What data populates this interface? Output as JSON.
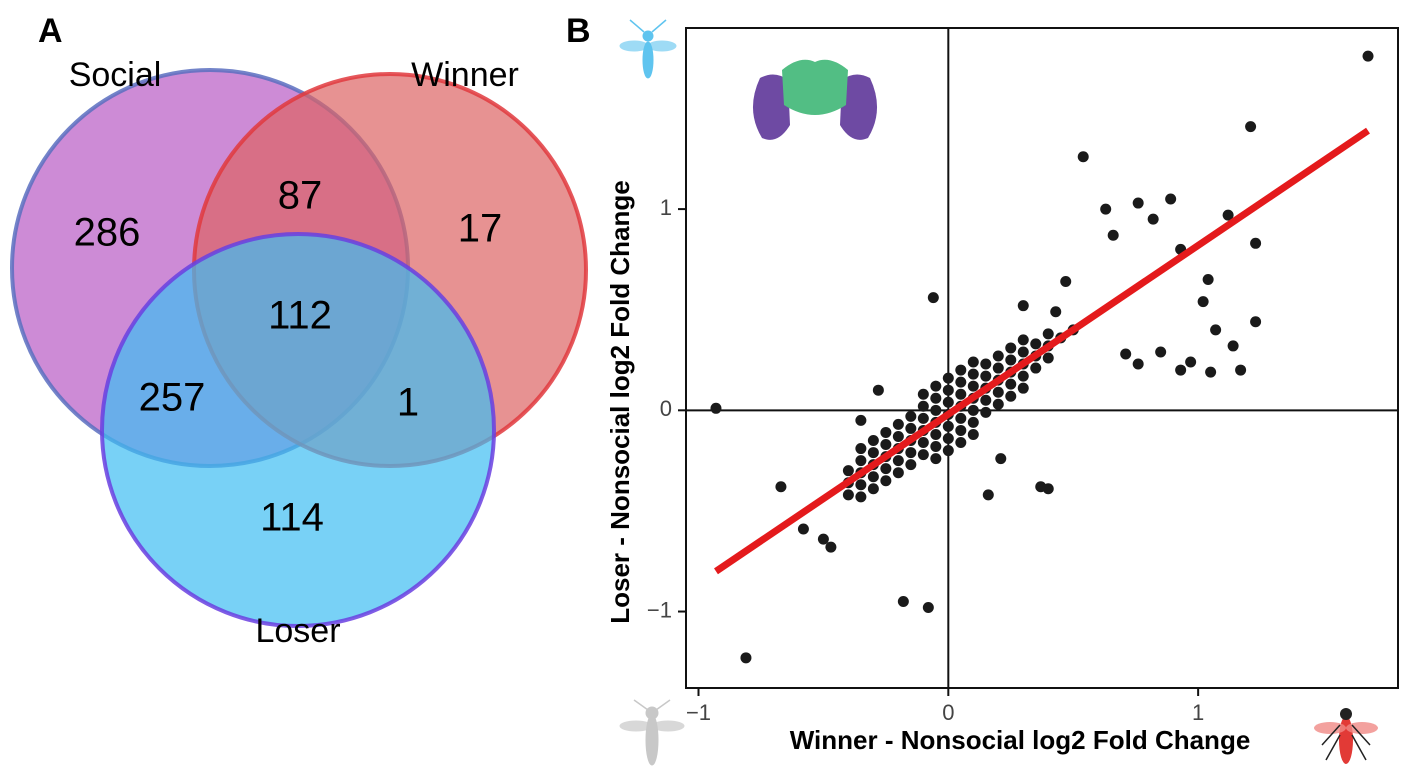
{
  "chart_data": [
    {
      "type": "venn",
      "panel_label": "A",
      "sets": [
        {
          "name": "Social",
          "color": "#b85ac4",
          "stroke": "#5a6fc0"
        },
        {
          "name": "Winner",
          "color": "#dd6464",
          "stroke": "#e0393e"
        },
        {
          "name": "Loser",
          "color": "#3fbef2",
          "stroke": "#6a3fe0"
        }
      ],
      "counts": [
        286,
        87,
        17,
        257,
        112,
        1,
        114
      ]
    },
    {
      "type": "scatter",
      "panel_label": "B",
      "xlabel": "Winner - Nonsocial log2 Fold Change",
      "ylabel": "Loser - Nonsocial log2 Fold Change",
      "xlim": [
        -1.05,
        1.8
      ],
      "ylim": [
        -1.38,
        1.9
      ],
      "xticks": [
        {
          "value": -1,
          "label": "−1"
        },
        0,
        1
      ],
      "yticks": [
        {
          "value": -1,
          "label": "−1"
        },
        0,
        1
      ],
      "vline": 0,
      "hline": 0,
      "color": "#1a1a1a",
      "fit_line": {
        "color": "#e41a1c",
        "x": [
          -0.93,
          1.68
        ],
        "y": [
          -0.8,
          1.39
        ]
      },
      "x": [
        1.68,
        1.21,
        0.54,
        1.12,
        1.23,
        0.63,
        0.76,
        0.89,
        0.82,
        0.66,
        0.93,
        1.04,
        1.02,
        1.23,
        1.14,
        1.07,
        1.17,
        1.05,
        0.97,
        0.85,
        0.93,
        0.76,
        0.71,
        0.37,
        0.4,
        -0.93,
        -0.81,
        -0.18,
        -0.08,
        -0.06,
        -0.67,
        -0.58,
        -0.47,
        -0.5,
        -0.35,
        -0.28,
        0.43,
        0.3,
        0.47,
        0.21,
        0.16,
        -0.4,
        -0.4,
        -0.4,
        -0.35,
        -0.35,
        -0.35,
        -0.35,
        -0.35,
        -0.3,
        -0.3,
        -0.3,
        -0.3,
        -0.3,
        -0.25,
        -0.25,
        -0.25,
        -0.25,
        -0.25,
        -0.2,
        -0.2,
        -0.2,
        -0.2,
        -0.2,
        -0.15,
        -0.15,
        -0.15,
        -0.15,
        -0.15,
        -0.1,
        -0.1,
        -0.1,
        -0.1,
        -0.1,
        -0.1,
        -0.05,
        -0.05,
        -0.05,
        -0.05,
        -0.05,
        -0.05,
        -0.05,
        0,
        0,
        0,
        0,
        0,
        0,
        0,
        0.05,
        0.05,
        0.05,
        0.05,
        0.05,
        0.05,
        0.05,
        0.1,
        0.1,
        0.1,
        0.1,
        0.1,
        0.1,
        0.1,
        0.15,
        0.15,
        0.15,
        0.15,
        0.15,
        0.2,
        0.2,
        0.2,
        0.2,
        0.2,
        0.25,
        0.25,
        0.25,
        0.25,
        0.25,
        0.3,
        0.3,
        0.3,
        0.3,
        0.3,
        0.35,
        0.35,
        0.35,
        0.4,
        0.4,
        0.4,
        0.45,
        0.5
      ],
      "y": [
        1.76,
        1.41,
        1.26,
        0.97,
        0.83,
        1.0,
        1.03,
        1.05,
        0.95,
        0.87,
        0.8,
        0.65,
        0.54,
        0.44,
        0.32,
        0.4,
        0.2,
        0.19,
        0.24,
        0.29,
        0.2,
        0.23,
        0.28,
        -0.38,
        -0.39,
        0.01,
        -1.23,
        -0.95,
        -0.98,
        0.56,
        -0.38,
        -0.59,
        -0.68,
        -0.64,
        -0.05,
        0.1,
        0.49,
        0.52,
        0.64,
        -0.24,
        -0.42,
        -0.42,
        -0.36,
        -0.3,
        -0.43,
        -0.37,
        -0.31,
        -0.25,
        -0.19,
        -0.39,
        -0.33,
        -0.27,
        -0.21,
        -0.15,
        -0.35,
        -0.29,
        -0.23,
        -0.17,
        -0.11,
        -0.31,
        -0.25,
        -0.19,
        -0.13,
        -0.07,
        -0.27,
        -0.21,
        -0.15,
        -0.09,
        -0.03,
        -0.22,
        -0.16,
        -0.1,
        -0.04,
        0.02,
        0.08,
        -0.24,
        -0.18,
        -0.12,
        -0.06,
        0,
        0.06,
        0.12,
        -0.2,
        -0.14,
        -0.08,
        -0.02,
        0.04,
        0.1,
        0.16,
        -0.16,
        -0.1,
        -0.04,
        0.02,
        0.08,
        0.14,
        0.2,
        -0.12,
        -0.06,
        0,
        0.06,
        0.12,
        0.18,
        0.24,
        -0.01,
        0.05,
        0.11,
        0.17,
        0.23,
        0.03,
        0.09,
        0.15,
        0.21,
        0.27,
        0.07,
        0.13,
        0.19,
        0.25,
        0.31,
        0.11,
        0.17,
        0.23,
        0.29,
        0.35,
        0.21,
        0.27,
        0.33,
        0.26,
        0.32,
        0.38,
        0.36,
        0.4
      ]
    }
  ]
}
